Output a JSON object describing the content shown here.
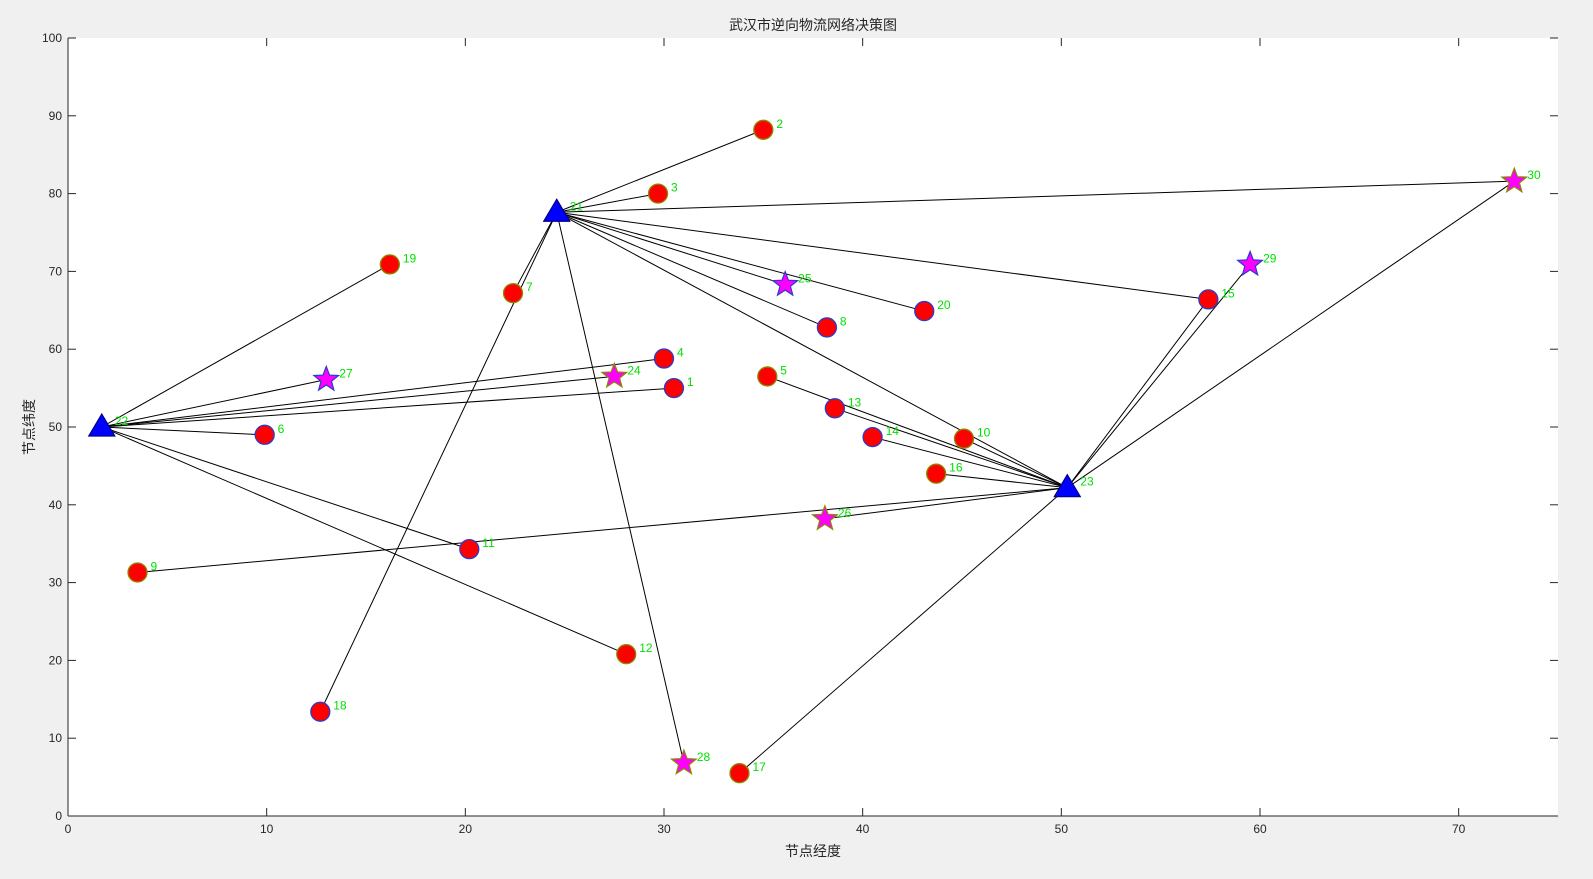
{
  "chart_data": {
    "type": "scatter",
    "title": "武汉市逆向物流网络决策图",
    "xlabel": "节点经度",
    "ylabel": "节点纬度",
    "xlim": [
      0,
      75
    ],
    "ylim": [
      0,
      100
    ],
    "xticks": [
      0,
      10,
      20,
      30,
      40,
      50,
      60,
      70
    ],
    "yticks": [
      0,
      10,
      20,
      30,
      40,
      50,
      60,
      70,
      80,
      90,
      100
    ],
    "grid": false,
    "colors": {
      "circle_fill": "#ff0000",
      "circle_edge_a": "#2b3bcc",
      "circle_edge_b": "#8a8a00",
      "star_fill": "#ff00ff",
      "triangle_fill": "#0000ff",
      "edge_line": "#000000",
      "label": "#00e000"
    },
    "nodes": [
      {
        "id": "1",
        "x": 30.5,
        "y": 55.0,
        "shape": "circle",
        "edge": "a"
      },
      {
        "id": "2",
        "x": 35.0,
        "y": 88.2,
        "shape": "circle",
        "edge": "b"
      },
      {
        "id": "3",
        "x": 29.7,
        "y": 80.0,
        "shape": "circle",
        "edge": "b"
      },
      {
        "id": "4",
        "x": 30.0,
        "y": 58.8,
        "shape": "circle",
        "edge": "a"
      },
      {
        "id": "5",
        "x": 35.2,
        "y": 56.5,
        "shape": "circle",
        "edge": "b"
      },
      {
        "id": "6",
        "x": 9.9,
        "y": 49.0,
        "shape": "circle",
        "edge": "a"
      },
      {
        "id": "7",
        "x": 22.4,
        "y": 67.2,
        "shape": "circle",
        "edge": "b"
      },
      {
        "id": "8",
        "x": 38.2,
        "y": 62.8,
        "shape": "circle",
        "edge": "a"
      },
      {
        "id": "9",
        "x": 3.5,
        "y": 31.3,
        "shape": "circle",
        "edge": "b"
      },
      {
        "id": "10",
        "x": 45.1,
        "y": 48.5,
        "shape": "circle",
        "edge": "b"
      },
      {
        "id": "11",
        "x": 20.2,
        "y": 34.3,
        "shape": "circle",
        "edge": "a"
      },
      {
        "id": "12",
        "x": 28.1,
        "y": 20.8,
        "shape": "circle",
        "edge": "b"
      },
      {
        "id": "13",
        "x": 38.6,
        "y": 52.4,
        "shape": "circle",
        "edge": "a"
      },
      {
        "id": "14",
        "x": 40.5,
        "y": 48.7,
        "shape": "circle",
        "edge": "a"
      },
      {
        "id": "15",
        "x": 57.4,
        "y": 66.4,
        "shape": "circle",
        "edge": "a"
      },
      {
        "id": "16",
        "x": 43.7,
        "y": 44.0,
        "shape": "circle",
        "edge": "b"
      },
      {
        "id": "17",
        "x": 33.8,
        "y": 5.5,
        "shape": "circle",
        "edge": "b"
      },
      {
        "id": "18",
        "x": 12.7,
        "y": 13.4,
        "shape": "circle",
        "edge": "a"
      },
      {
        "id": "19",
        "x": 16.2,
        "y": 70.9,
        "shape": "circle",
        "edge": "b"
      },
      {
        "id": "20",
        "x": 43.1,
        "y": 64.9,
        "shape": "circle",
        "edge": "a"
      },
      {
        "id": "21",
        "x": 24.6,
        "y": 77.6,
        "shape": "triangle",
        "edge": "a"
      },
      {
        "id": "22",
        "x": 1.7,
        "y": 50.0,
        "shape": "triangle",
        "edge": "a"
      },
      {
        "id": "23",
        "x": 50.3,
        "y": 42.2,
        "shape": "triangle",
        "edge": "a"
      },
      {
        "id": "24",
        "x": 27.5,
        "y": 56.5,
        "shape": "star",
        "edge": "b"
      },
      {
        "id": "25",
        "x": 36.1,
        "y": 68.3,
        "shape": "star",
        "edge": "a"
      },
      {
        "id": "26",
        "x": 38.1,
        "y": 38.2,
        "shape": "star",
        "edge": "b"
      },
      {
        "id": "27",
        "x": 13.0,
        "y": 56.1,
        "shape": "star",
        "edge": "a"
      },
      {
        "id": "28",
        "x": 31.0,
        "y": 6.8,
        "shape": "star",
        "edge": "b"
      },
      {
        "id": "29",
        "x": 59.5,
        "y": 70.9,
        "shape": "star",
        "edge": "a"
      },
      {
        "id": "30",
        "x": 72.8,
        "y": 81.6,
        "shape": "star",
        "edge": "b"
      }
    ],
    "edges": [
      [
        "21",
        "2"
      ],
      [
        "21",
        "3"
      ],
      [
        "21",
        "7"
      ],
      [
        "21",
        "18"
      ],
      [
        "21",
        "25"
      ],
      [
        "21",
        "20"
      ],
      [
        "21",
        "8"
      ],
      [
        "21",
        "15"
      ],
      [
        "21",
        "30"
      ],
      [
        "21",
        "28"
      ],
      [
        "21",
        "23"
      ],
      [
        "22",
        "19"
      ],
      [
        "22",
        "27"
      ],
      [
        "22",
        "4"
      ],
      [
        "22",
        "24"
      ],
      [
        "22",
        "1"
      ],
      [
        "22",
        "6"
      ],
      [
        "22",
        "11"
      ],
      [
        "22",
        "12"
      ],
      [
        "23",
        "5"
      ],
      [
        "23",
        "13"
      ],
      [
        "23",
        "14"
      ],
      [
        "23",
        "10"
      ],
      [
        "23",
        "16"
      ],
      [
        "23",
        "26"
      ],
      [
        "23",
        "9"
      ],
      [
        "23",
        "17"
      ],
      [
        "23",
        "15"
      ],
      [
        "23",
        "29"
      ],
      [
        "23",
        "30"
      ]
    ]
  }
}
